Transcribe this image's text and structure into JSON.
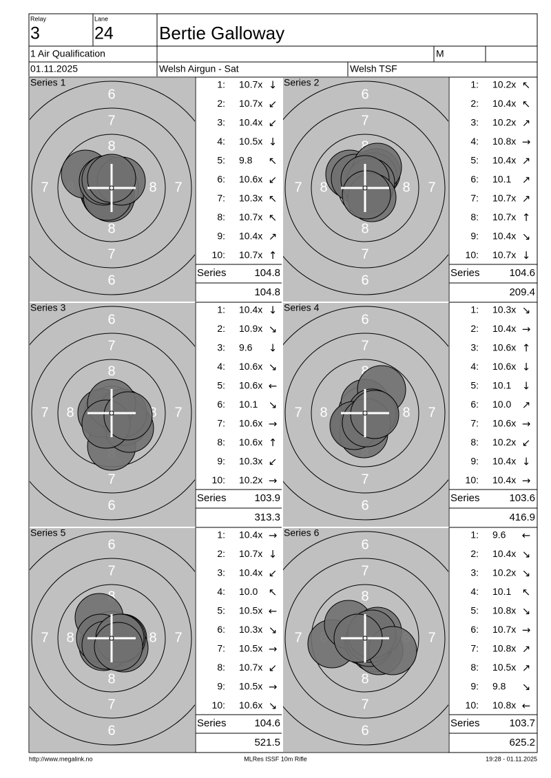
{
  "header": {
    "relay_label": "Relay",
    "relay": "3",
    "lane_label": "Lane",
    "lane": "24",
    "name": "Bertie Galloway",
    "event": "1 Air Qualification",
    "gender": "M",
    "date": "01.11.2025",
    "competition": "Welsh Airgun - Sat",
    "club": "Welsh TSF"
  },
  "ring_labels": [
    "6",
    "7",
    "8"
  ],
  "series": [
    {
      "title": "Series 1",
      "series_label": "Series",
      "series_total": "104.8",
      "cumulative": "104.8",
      "shots": [
        {
          "no": "1:",
          "score": "10.7x",
          "dir": "↓"
        },
        {
          "no": "2:",
          "score": "10.7x",
          "dir": "↙"
        },
        {
          "no": "3:",
          "score": "10.4x",
          "dir": "↙"
        },
        {
          "no": "4:",
          "score": "10.5x",
          "dir": "↓"
        },
        {
          "no": "5:",
          "score": "9.8",
          "dir": "↖"
        },
        {
          "no": "6:",
          "score": "10.6x",
          "dir": "↙"
        },
        {
          "no": "7:",
          "score": "10.3x",
          "dir": "↖"
        },
        {
          "no": "8:",
          "score": "10.7x",
          "dir": "↖"
        },
        {
          "no": "9:",
          "score": "10.4x",
          "dir": "↗"
        },
        {
          "no": "10:",
          "score": "10.7x",
          "dir": "↑"
        }
      ],
      "impacts": [
        [
          -2,
          8
        ],
        [
          -10,
          6
        ],
        [
          -8,
          10
        ],
        [
          -2,
          14
        ],
        [
          -38,
          -20
        ],
        [
          -6,
          12
        ],
        [
          -12,
          -10
        ],
        [
          -8,
          -12
        ],
        [
          14,
          -10
        ],
        [
          0,
          -14
        ]
      ]
    },
    {
      "title": "Series 2",
      "series_label": "Series",
      "series_total": "104.6",
      "cumulative": "209.4",
      "shots": [
        {
          "no": "1:",
          "score": "10.2x",
          "dir": "↖"
        },
        {
          "no": "2:",
          "score": "10.4x",
          "dir": "↖"
        },
        {
          "no": "3:",
          "score": "10.2x",
          "dir": "↗"
        },
        {
          "no": "4:",
          "score": "10.8x",
          "dir": "→"
        },
        {
          "no": "5:",
          "score": "10.4x",
          "dir": "↗"
        },
        {
          "no": "6:",
          "score": "10.1",
          "dir": "↗"
        },
        {
          "no": "7:",
          "score": "10.7x",
          "dir": "↗"
        },
        {
          "no": "8:",
          "score": "10.7x",
          "dir": "↑"
        },
        {
          "no": "9:",
          "score": "10.4x",
          "dir": "↘"
        },
        {
          "no": "10:",
          "score": "10.7x",
          "dir": "↓"
        }
      ],
      "impacts": [
        [
          -22,
          -20
        ],
        [
          -14,
          -14
        ],
        [
          16,
          -22
        ],
        [
          6,
          0
        ],
        [
          12,
          -16
        ],
        [
          18,
          -30
        ],
        [
          8,
          -8
        ],
        [
          0,
          -12
        ],
        [
          10,
          14
        ],
        [
          2,
          10
        ]
      ]
    },
    {
      "title": "Series 3",
      "series_label": "Series",
      "series_total": "103.9",
      "cumulative": "313.3",
      "shots": [
        {
          "no": "1:",
          "score": "10.4x",
          "dir": "↓"
        },
        {
          "no": "2:",
          "score": "10.9x",
          "dir": "↘"
        },
        {
          "no": "3:",
          "score": "9.6",
          "dir": "↓"
        },
        {
          "no": "4:",
          "score": "10.6x",
          "dir": "↘"
        },
        {
          "no": "5:",
          "score": "10.6x",
          "dir": "←"
        },
        {
          "no": "6:",
          "score": "10.1",
          "dir": "↘"
        },
        {
          "no": "7:",
          "score": "10.6x",
          "dir": "→"
        },
        {
          "no": "8:",
          "score": "10.6x",
          "dir": "↑"
        },
        {
          "no": "9:",
          "score": "10.3x",
          "dir": "↙"
        },
        {
          "no": "10:",
          "score": "10.2x",
          "dir": "→"
        }
      ],
      "impacts": [
        [
          0,
          16
        ],
        [
          4,
          4
        ],
        [
          0,
          48
        ],
        [
          18,
          12
        ],
        [
          -14,
          0
        ],
        [
          26,
          22
        ],
        [
          16,
          0
        ],
        [
          0,
          -14
        ],
        [
          -8,
          16
        ],
        [
          24,
          4
        ]
      ]
    },
    {
      "title": "Series 4",
      "series_label": "Series",
      "series_total": "103.6",
      "cumulative": "416.9",
      "shots": [
        {
          "no": "1:",
          "score": "10.3x",
          "dir": "↘"
        },
        {
          "no": "2:",
          "score": "10.4x",
          "dir": "→"
        },
        {
          "no": "3:",
          "score": "10.6x",
          "dir": "↑"
        },
        {
          "no": "4:",
          "score": "10.6x",
          "dir": "↓"
        },
        {
          "no": "5:",
          "score": "10.1",
          "dir": "↓"
        },
        {
          "no": "6:",
          "score": "10.0",
          "dir": "↗"
        },
        {
          "no": "7:",
          "score": "10.6x",
          "dir": "→"
        },
        {
          "no": "8:",
          "score": "10.2x",
          "dir": "↙"
        },
        {
          "no": "9:",
          "score": "10.4x",
          "dir": "↓"
        },
        {
          "no": "10:",
          "score": "10.4x",
          "dir": "→"
        }
      ],
      "impacts": [
        [
          -14,
          18
        ],
        [
          12,
          0
        ],
        [
          0,
          -14
        ],
        [
          0,
          12
        ],
        [
          -2,
          30
        ],
        [
          24,
          -34
        ],
        [
          10,
          0
        ],
        [
          -16,
          18
        ],
        [
          2,
          14
        ],
        [
          14,
          2
        ]
      ]
    },
    {
      "title": "Series 5",
      "series_label": "Series",
      "series_total": "104.6",
      "cumulative": "521.5",
      "shots": [
        {
          "no": "1:",
          "score": "10.4x",
          "dir": "→"
        },
        {
          "no": "2:",
          "score": "10.7x",
          "dir": "↓"
        },
        {
          "no": "3:",
          "score": "10.4x",
          "dir": "↙"
        },
        {
          "no": "4:",
          "score": "10.0",
          "dir": "↖"
        },
        {
          "no": "5:",
          "score": "10.5x",
          "dir": "←"
        },
        {
          "no": "6:",
          "score": "10.3x",
          "dir": "↘"
        },
        {
          "no": "7:",
          "score": "10.5x",
          "dir": "→"
        },
        {
          "no": "8:",
          "score": "10.7x",
          "dir": "↙"
        },
        {
          "no": "9:",
          "score": "10.5x",
          "dir": "→"
        },
        {
          "no": "10:",
          "score": "10.6x",
          "dir": "↘"
        }
      ],
      "impacts": [
        [
          16,
          0
        ],
        [
          0,
          10
        ],
        [
          -12,
          12
        ],
        [
          -18,
          -30
        ],
        [
          -16,
          0
        ],
        [
          18,
          14
        ],
        [
          14,
          0
        ],
        [
          -8,
          10
        ],
        [
          12,
          0
        ],
        [
          10,
          12
        ]
      ]
    },
    {
      "title": "Series 6",
      "series_label": "Series",
      "series_total": "103.7",
      "cumulative": "625.2",
      "shots": [
        {
          "no": "1:",
          "score": "9.6",
          "dir": "←"
        },
        {
          "no": "2:",
          "score": "10.4x",
          "dir": "↘"
        },
        {
          "no": "3:",
          "score": "10.2x",
          "dir": "↘"
        },
        {
          "no": "4:",
          "score": "10.1",
          "dir": "↖"
        },
        {
          "no": "5:",
          "score": "10.8x",
          "dir": "↘"
        },
        {
          "no": "6:",
          "score": "10.7x",
          "dir": "→"
        },
        {
          "no": "7:",
          "score": "10.8x",
          "dir": "↗"
        },
        {
          "no": "8:",
          "score": "10.5x",
          "dir": "↗"
        },
        {
          "no": "9:",
          "score": "9.8",
          "dir": "↘"
        },
        {
          "no": "10:",
          "score": "10.8x",
          "dir": "←"
        }
      ],
      "impacts": [
        [
          -48,
          8
        ],
        [
          14,
          14
        ],
        [
          20,
          18
        ],
        [
          -24,
          -20
        ],
        [
          6,
          6
        ],
        [
          8,
          0
        ],
        [
          18,
          -10
        ],
        [
          10,
          -6
        ],
        [
          40,
          18
        ],
        [
          -10,
          0
        ]
      ]
    }
  ],
  "footer": {
    "url": "http://www.megalink.no",
    "software": "MLRes ISSF 10m Rifle",
    "timestamp": "19:28 - 01.11.2025"
  }
}
